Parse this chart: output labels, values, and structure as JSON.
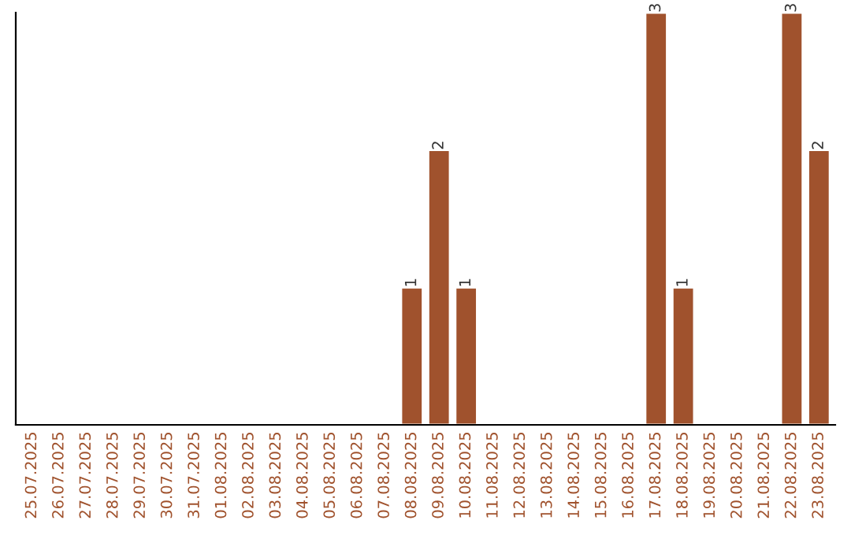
{
  "chart_data": {
    "type": "bar",
    "categories": [
      "25.07.2025",
      "26.07.2025",
      "27.07.2025",
      "28.07.2025",
      "29.07.2025",
      "30.07.2025",
      "31.07.2025",
      "01.08.2025",
      "02.08.2025",
      "03.08.2025",
      "04.08.2025",
      "05.08.2025",
      "06.08.2025",
      "07.08.2025",
      "08.08.2025",
      "09.08.2025",
      "10.08.2025",
      "11.08.2025",
      "12.08.2025",
      "13.08.2025",
      "14.08.2025",
      "15.08.2025",
      "16.08.2025",
      "17.08.2025",
      "18.08.2025",
      "19.08.2025",
      "20.08.2025",
      "21.08.2025",
      "22.08.2025",
      "23.08.2025"
    ],
    "values": [
      null,
      null,
      null,
      null,
      null,
      null,
      null,
      null,
      null,
      null,
      null,
      null,
      null,
      null,
      1,
      2,
      1,
      null,
      null,
      null,
      null,
      null,
      null,
      3,
      1,
      null,
      null,
      null,
      3,
      2
    ],
    "value_labels": [
      null,
      null,
      null,
      null,
      null,
      null,
      null,
      null,
      null,
      null,
      null,
      null,
      null,
      null,
      "1",
      "2",
      "1",
      null,
      null,
      null,
      null,
      null,
      null,
      "3",
      "1",
      null,
      null,
      null,
      "3",
      "2"
    ],
    "color": "#a0522d",
    "grid": false,
    "legend": false
  }
}
